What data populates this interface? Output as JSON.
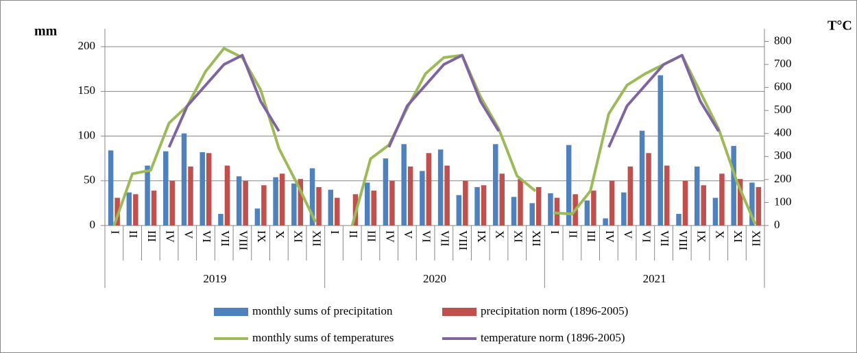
{
  "chart_data": {
    "type": "combo",
    "y_label": "mm",
    "y2_label": "T°C",
    "categories": [
      "I",
      "II",
      "III",
      "IV",
      "V",
      "VI",
      "VII",
      "VIII",
      "IX",
      "X",
      "XI",
      "XII",
      "I",
      "II",
      "III",
      "IV",
      "V",
      "VI",
      "VII",
      "VIII",
      "IX",
      "X",
      "XI",
      "XII",
      "I",
      "II",
      "III",
      "IV",
      "V",
      "VI",
      "VII",
      "VIII",
      "IX",
      "X",
      "XI",
      "XII"
    ],
    "category_groups": [
      "2019",
      "2020",
      "2021"
    ],
    "ylim": [
      0,
      220
    ],
    "yticks": [
      0,
      50,
      100,
      150,
      200
    ],
    "y2lim": [
      0,
      855
    ],
    "y2ticks": [
      0,
      100,
      200,
      300,
      400,
      500,
      600,
      700,
      800
    ],
    "grid": true,
    "legend": "bottom",
    "series": [
      {
        "name": "monthly sums of precipitation",
        "color": "#4f81bd",
        "type": "bar",
        "values": [
          84,
          37,
          67,
          83,
          103,
          82,
          13,
          55,
          19,
          54,
          47,
          64,
          40,
          0,
          48,
          75,
          91,
          61,
          85,
          34,
          43,
          91,
          32,
          25,
          36,
          90,
          28,
          8,
          37,
          106,
          168,
          13,
          66,
          31,
          89,
          48
        ]
      },
      {
        "name": "precipitation norm (1896-2005)",
        "color": "#c0504d",
        "type": "bar",
        "values": [
          31,
          35,
          39,
          50,
          66,
          81,
          67,
          50,
          45,
          58,
          52,
          43,
          31,
          35,
          39,
          50,
          66,
          81,
          67,
          50,
          45,
          58,
          52,
          43,
          31,
          35,
          39,
          50,
          66,
          81,
          67,
          50,
          45,
          58,
          52,
          43
        ]
      },
      {
        "name": "monthly sums of temperatures",
        "color": "#9bbb59",
        "type": "line",
        "axis": "y2",
        "values": [
          0,
          225,
          240,
          445,
          520,
          670,
          770,
          730,
          590,
          335,
          180,
          15,
          null,
          0,
          290,
          350,
          510,
          660,
          730,
          740,
          560,
          420,
          215,
          150,
          55,
          50,
          150,
          485,
          610,
          660,
          700,
          740,
          580,
          420,
          190,
          5
        ]
      },
      {
        "name": "temperature norm (1896-2005)",
        "color": "#8064a2",
        "type": "line",
        "axis": "y2",
        "values": [
          null,
          null,
          null,
          340,
          520,
          610,
          700,
          740,
          540,
          410,
          null,
          null,
          null,
          null,
          null,
          340,
          520,
          610,
          700,
          740,
          540,
          410,
          null,
          null,
          null,
          null,
          null,
          340,
          520,
          610,
          700,
          740,
          540,
          410,
          null,
          null
        ]
      }
    ]
  }
}
